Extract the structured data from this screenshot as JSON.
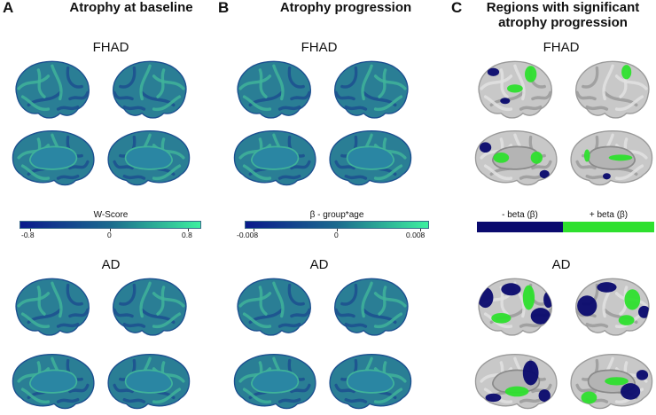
{
  "panels": [
    {
      "letter": "A",
      "title": "Atrophy at baseline"
    },
    {
      "letter": "B",
      "title": "Atrophy progression"
    },
    {
      "letter": "C",
      "title_line1": "Regions with significant",
      "title_line2": "atrophy progression"
    }
  ],
  "groups": {
    "top": "FHAD",
    "bottom": "AD"
  },
  "colorbars": {
    "a": {
      "label": "W-Score",
      "min": "-0.8",
      "mid": "0",
      "max": "0.8",
      "from": "#0a1a8c",
      "via": "#1b6a8e",
      "to": "#3df0a0"
    },
    "b": {
      "label": "β - group*age",
      "min": "-0.008",
      "mid": "0",
      "max": "0.008",
      "from": "#0a1a8c",
      "via": "#1b6a8e",
      "to": "#3df0a0"
    }
  },
  "legend_c": {
    "negative": "- beta (β)",
    "positive": "+ beta (β)",
    "neg_color": "#0a0a6e",
    "pos_color": "#2ee02e"
  },
  "colors": {
    "cortex_base": "#2a7e95",
    "cortex_light": "#3fb39a",
    "cortex_dark": "#1c4f8f",
    "medial_wall": "#2a86a3",
    "gray_brain": "#c8c8c8",
    "gray_dark": "#9a9a9a"
  }
}
